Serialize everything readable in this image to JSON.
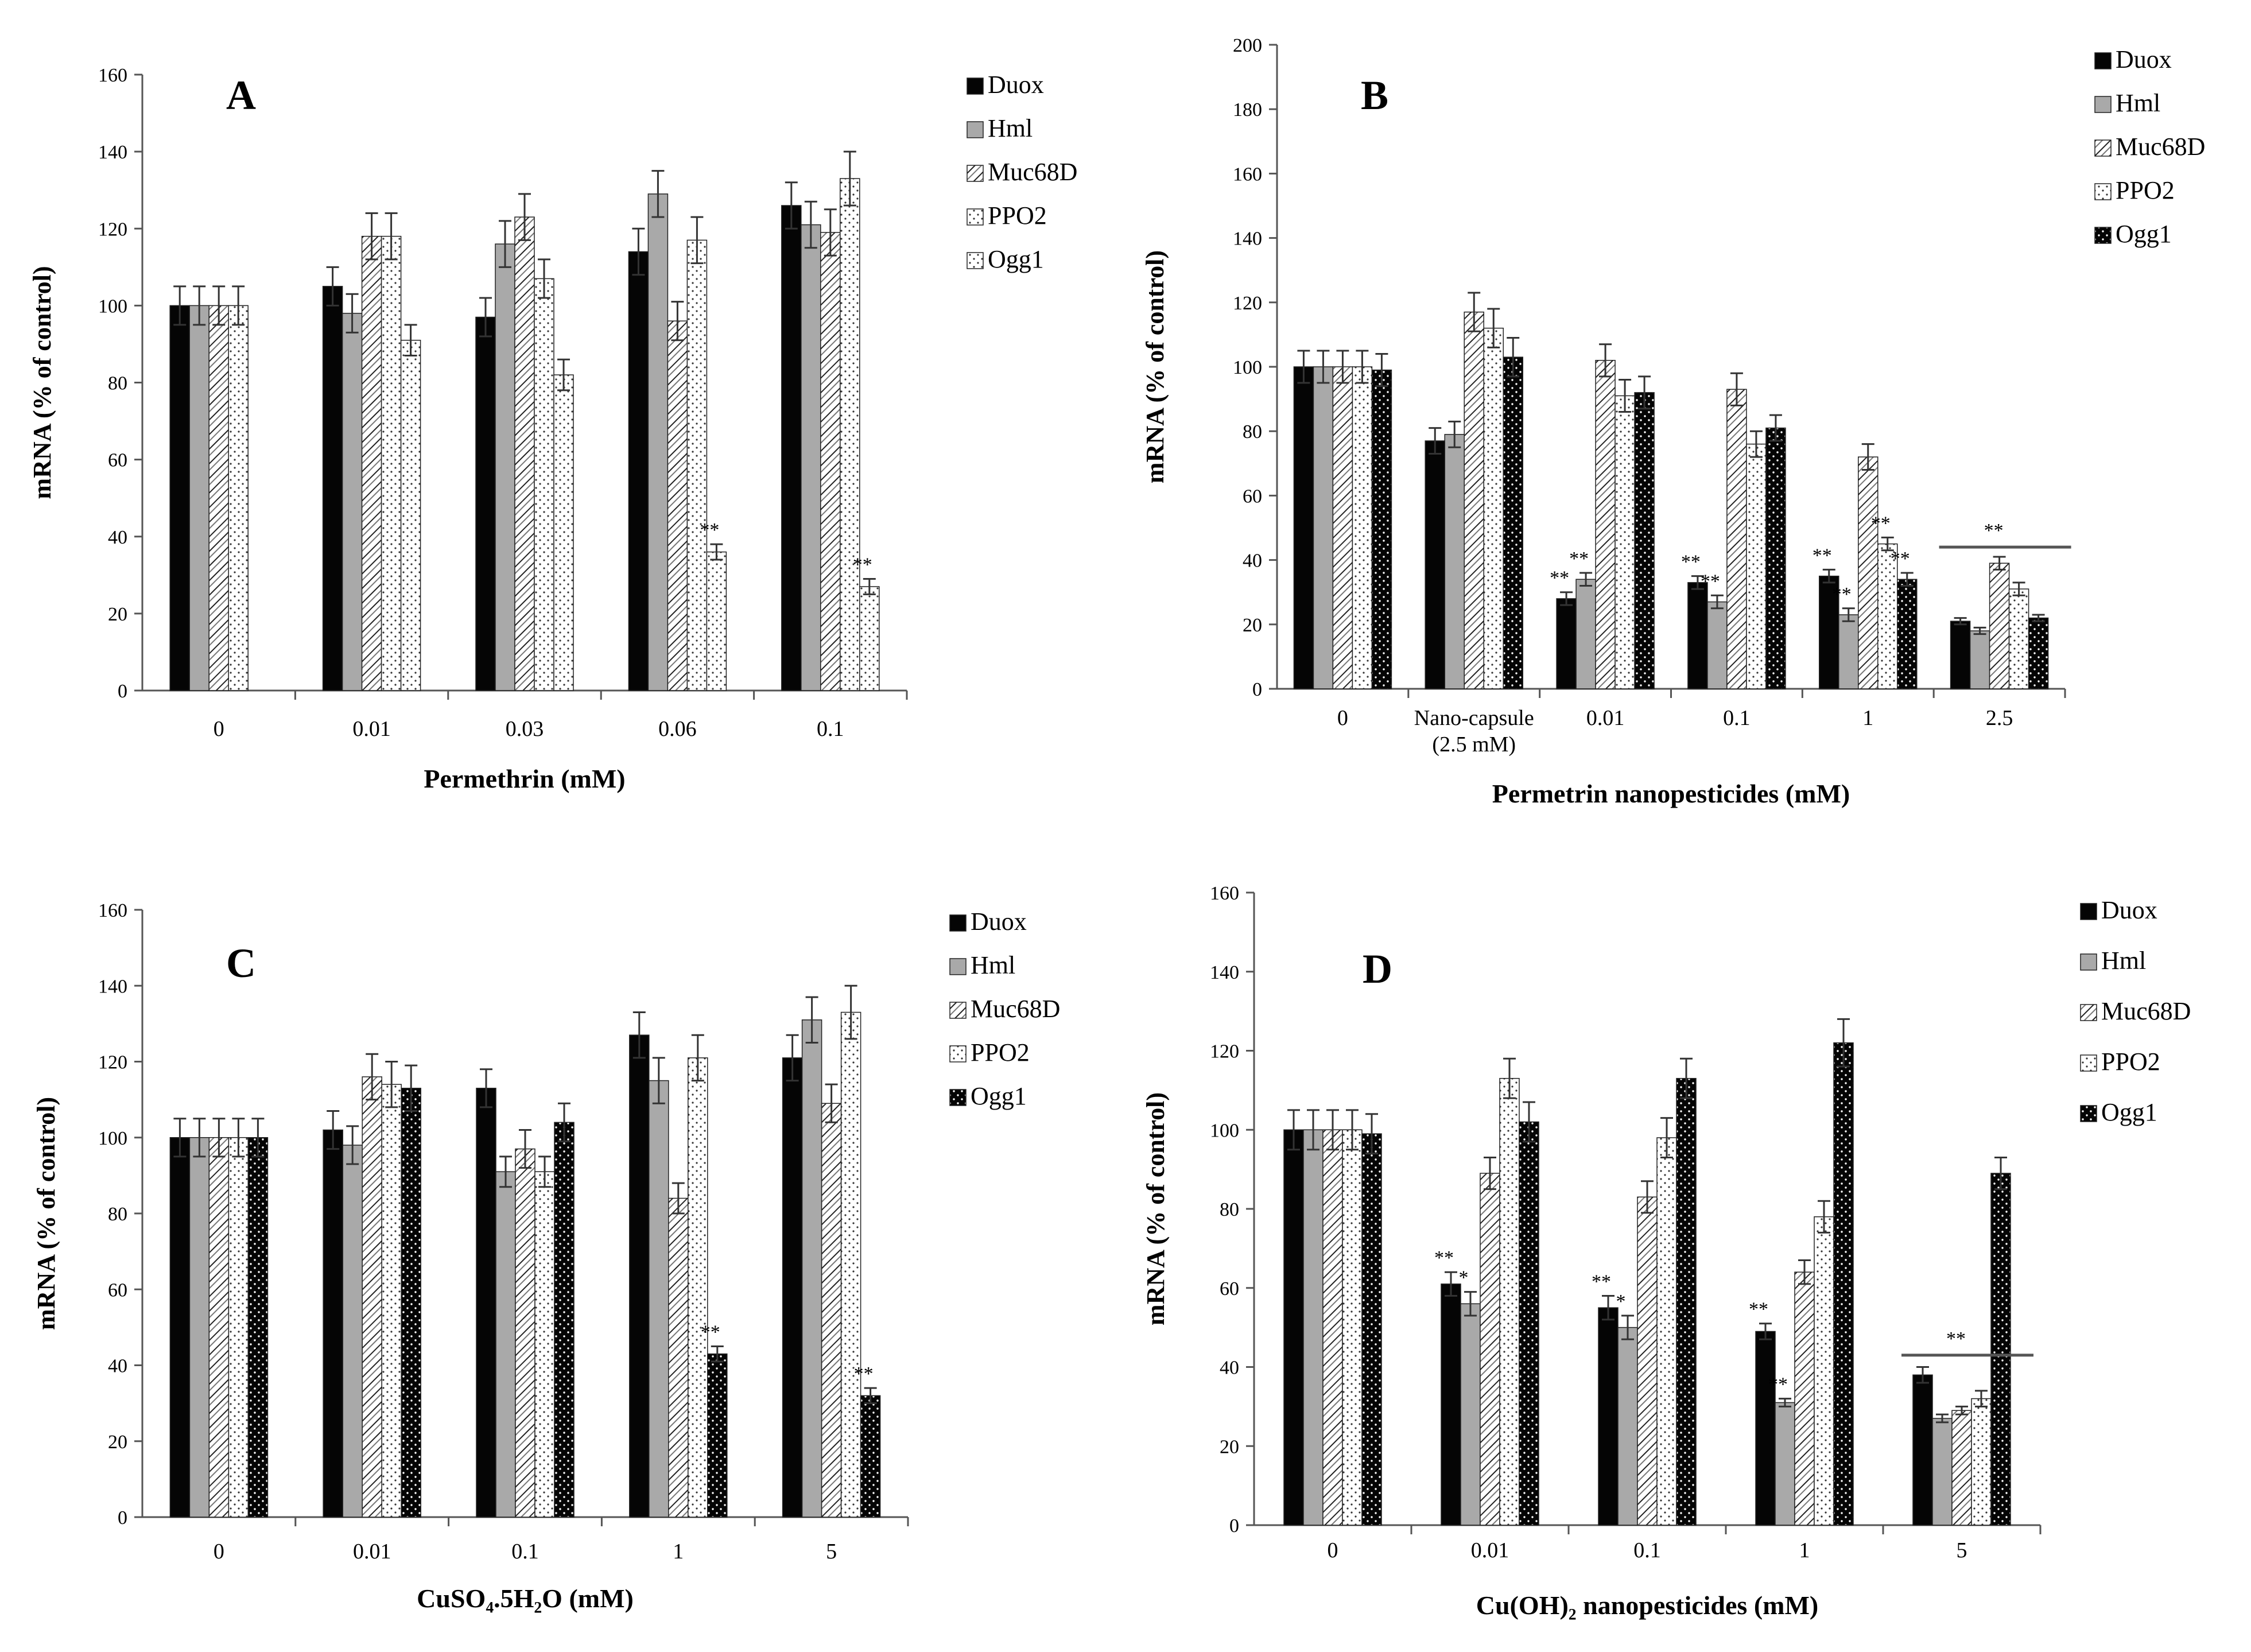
{
  "figure": {
    "panels": [
      "A",
      "B",
      "C",
      "D"
    ]
  },
  "chart_data": [
    {
      "type": "bar",
      "panel": "A",
      "xlabel": "Permethrin (mM)",
      "ylabel": "mRNA (% of control)",
      "ylim": [
        0,
        160
      ],
      "yticks": [
        0,
        20,
        40,
        60,
        80,
        100,
        120,
        140,
        160
      ],
      "categories": [
        [
          "0"
        ],
        [
          "0.01"
        ],
        [
          "0.03"
        ],
        [
          "0.06"
        ],
        [
          "0.1"
        ]
      ],
      "series": [
        {
          "name": "Duox",
          "pattern": "black",
          "values": [
            100,
            105,
            97,
            114,
            126
          ],
          "errors": [
            5,
            5,
            5,
            6,
            6
          ]
        },
        {
          "name": "Hml",
          "pattern": "gray",
          "values": [
            100,
            98,
            116,
            129,
            121
          ],
          "errors": [
            5,
            5,
            6,
            6,
            6
          ]
        },
        {
          "name": "Muc68D",
          "pattern": "hatch",
          "values": [
            100,
            118,
            123,
            96,
            119
          ],
          "errors": [
            5,
            6,
            6,
            5,
            6
          ]
        },
        {
          "name": "PPO2",
          "pattern": "dots",
          "values": [
            100,
            118,
            107,
            117,
            133
          ],
          "errors": [
            5,
            6,
            5,
            6,
            7
          ]
        },
        {
          "name": "Ogg1",
          "pattern": "dots",
          "values": [
            null,
            91,
            82,
            36,
            27
          ],
          "errors": [
            null,
            4,
            4,
            2,
            2
          ]
        }
      ],
      "annotations": [
        {
          "category": "0.06",
          "series": "Ogg1",
          "text": "**"
        },
        {
          "category": "0.1",
          "series": "Ogg1",
          "text": "**"
        }
      ]
    },
    {
      "type": "bar",
      "panel": "B",
      "xlabel": "Permetrin nanopesticides (mM)",
      "ylabel": "mRNA (% of control)",
      "ylim": [
        0,
        200
      ],
      "yticks": [
        0,
        20,
        40,
        60,
        80,
        100,
        120,
        140,
        160,
        180,
        200
      ],
      "categories": [
        [
          "0"
        ],
        [
          "Nano-capsule",
          "(2.5 mM)"
        ],
        [
          "0.01"
        ],
        [
          "0.1"
        ],
        [
          "1"
        ],
        [
          "2.5"
        ]
      ],
      "series": [
        {
          "name": "Duox",
          "pattern": "black",
          "values": [
            100,
            77,
            28,
            33,
            35,
            21
          ],
          "errors": [
            5,
            4,
            2,
            2,
            2,
            1
          ]
        },
        {
          "name": "Hml",
          "pattern": "gray",
          "values": [
            100,
            79,
            34,
            27,
            23,
            18
          ],
          "errors": [
            5,
            4,
            2,
            2,
            2,
            1
          ]
        },
        {
          "name": "Muc68D",
          "pattern": "hatch",
          "values": [
            100,
            117,
            102,
            93,
            72,
            39
          ],
          "errors": [
            5,
            6,
            5,
            5,
            4,
            2
          ]
        },
        {
          "name": "PPO2",
          "pattern": "dots",
          "values": [
            100,
            112,
            91,
            76,
            45,
            31
          ],
          "errors": [
            5,
            6,
            5,
            4,
            2,
            2
          ]
        },
        {
          "name": "Ogg1",
          "pattern": "dotsdark",
          "values": [
            99,
            103,
            92,
            81,
            34,
            22
          ],
          "errors": [
            5,
            6,
            5,
            4,
            2,
            1
          ]
        }
      ],
      "annotations": [
        {
          "category": "0.01",
          "series": "Duox",
          "text": "**"
        },
        {
          "category": "0.01",
          "series": "Hml",
          "text": "**"
        },
        {
          "category": "0.1",
          "series": "Duox",
          "text": "**"
        },
        {
          "category": "0.1",
          "series": "Hml",
          "text": "**"
        },
        {
          "category": "1",
          "series": "Duox",
          "text": "**"
        },
        {
          "category": "1",
          "series": "Hml",
          "text": "**"
        },
        {
          "category": "1",
          "series": "PPO2",
          "text": "**"
        },
        {
          "category": "1",
          "series": "Ogg1",
          "text": "**"
        },
        {
          "category": "2.5",
          "group": true,
          "level": 44,
          "text": "**"
        }
      ]
    },
    {
      "type": "bar",
      "panel": "C",
      "xlabel": "CuSO₄.5H₂O (mM)",
      "ylabel": "mRNA (% of control)",
      "ylim": [
        0,
        160
      ],
      "yticks": [
        0,
        20,
        40,
        60,
        80,
        100,
        120,
        140,
        160
      ],
      "categories": [
        [
          "0"
        ],
        [
          "0.01"
        ],
        [
          "0.1"
        ],
        [
          "1"
        ],
        [
          "5"
        ]
      ],
      "series": [
        {
          "name": "Duox",
          "pattern": "black",
          "values": [
            100,
            102,
            113,
            127,
            121
          ],
          "errors": [
            5,
            5,
            5,
            6,
            6
          ]
        },
        {
          "name": "Hml",
          "pattern": "gray",
          "values": [
            100,
            98,
            91,
            115,
            131
          ],
          "errors": [
            5,
            5,
            4,
            6,
            6
          ]
        },
        {
          "name": "Muc68D",
          "pattern": "hatch",
          "values": [
            100,
            116,
            97,
            84,
            109
          ],
          "errors": [
            5,
            6,
            5,
            4,
            5
          ]
        },
        {
          "name": "PPO2",
          "pattern": "dots",
          "values": [
            100,
            114,
            91,
            121,
            133
          ],
          "errors": [
            5,
            6,
            4,
            6,
            7
          ]
        },
        {
          "name": "Ogg1",
          "pattern": "dotsdark",
          "values": [
            100,
            113,
            104,
            43,
            32
          ],
          "errors": [
            5,
            6,
            5,
            2,
            2
          ]
        }
      ],
      "annotations": [
        {
          "category": "1",
          "series": "Ogg1",
          "text": "**"
        },
        {
          "category": "5",
          "series": "Ogg1",
          "text": "**"
        }
      ]
    },
    {
      "type": "bar",
      "panel": "D",
      "xlabel": "Cu(OH)₂ nanopesticides (mM)",
      "ylabel": "mRNA (% of control)",
      "ylim": [
        0,
        160
      ],
      "yticks": [
        0,
        20,
        40,
        60,
        80,
        100,
        120,
        140,
        160
      ],
      "categories": [
        [
          "0"
        ],
        [
          "0.01"
        ],
        [
          "0.1"
        ],
        [
          "1"
        ],
        [
          "5"
        ]
      ],
      "series": [
        {
          "name": "Duox",
          "pattern": "black",
          "values": [
            100,
            61,
            55,
            49,
            38
          ],
          "errors": [
            5,
            3,
            3,
            2,
            2
          ]
        },
        {
          "name": "Hml",
          "pattern": "gray",
          "values": [
            100,
            56,
            50,
            31,
            27
          ],
          "errors": [
            5,
            3,
            3,
            1,
            1
          ]
        },
        {
          "name": "Muc68D",
          "pattern": "hatch",
          "values": [
            100,
            89,
            83,
            64,
            29
          ],
          "errors": [
            5,
            4,
            4,
            3,
            1
          ]
        },
        {
          "name": "PPO2",
          "pattern": "dots",
          "values": [
            100,
            113,
            98,
            78,
            32
          ],
          "errors": [
            5,
            5,
            5,
            4,
            2
          ]
        },
        {
          "name": "Ogg1",
          "pattern": "dotsdark",
          "values": [
            99,
            102,
            113,
            122,
            89
          ],
          "errors": [
            5,
            5,
            5,
            6,
            4
          ]
        }
      ],
      "annotations": [
        {
          "category": "0.01",
          "series": "Duox",
          "text": "**"
        },
        {
          "category": "0.01",
          "series": "Hml",
          "text": "*"
        },
        {
          "category": "0.1",
          "series": "Duox",
          "text": "**"
        },
        {
          "category": "0.1",
          "series": "Hml",
          "text": "*"
        },
        {
          "category": "1",
          "series": "Duox",
          "text": "**"
        },
        {
          "category": "1",
          "series": "Hml",
          "text": "**"
        },
        {
          "category": "5",
          "group": true,
          "level": 43,
          "text": "**"
        }
      ]
    }
  ]
}
